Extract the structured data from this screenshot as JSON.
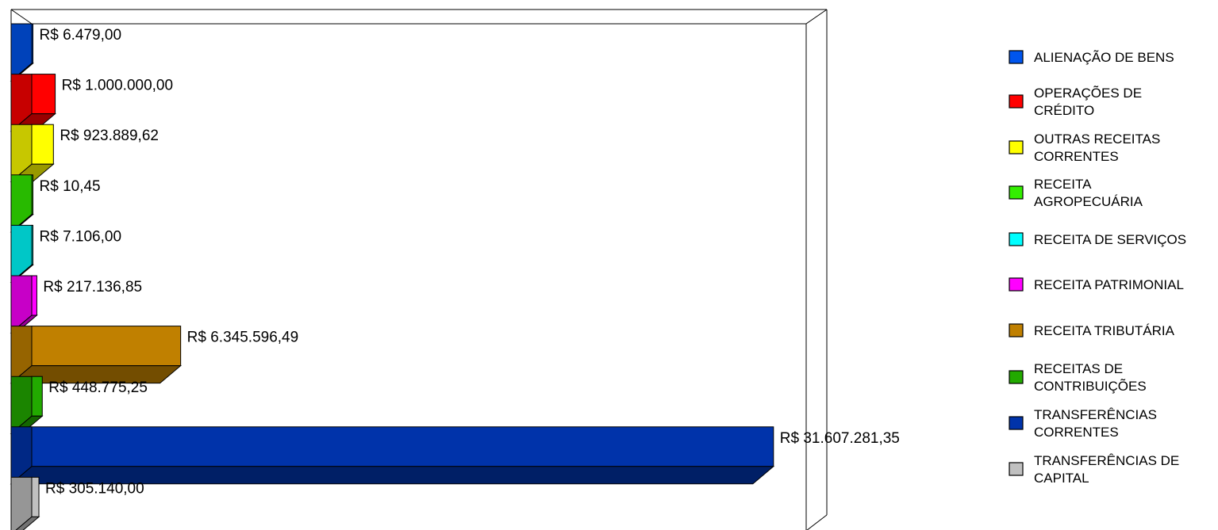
{
  "chart_data": {
    "type": "bar",
    "orientation": "horizontal",
    "three_d": true,
    "grid": false,
    "legend_position": "right",
    "categories": [
      "ALIENAÇÃO DE BENS",
      "OPERAÇÕES DE CRÉDITO",
      "OUTRAS RECEITAS CORRENTES",
      "RECEITA AGROPECUÁRIA",
      "RECEITA DE SERVIÇOS",
      "RECEITA PATRIMONIAL",
      "RECEITA TRIBUTÁRIA",
      "RECEITAS DE CONTRIBUIÇÕES",
      "TRANSFERÊNCIAS CORRENTES",
      "TRANSFERÊNCIAS DE CAPITAL"
    ],
    "legend_lines": [
      [
        "ALIENAÇÃO DE BENS"
      ],
      [
        "OPERAÇÕES DE",
        "CRÉDITO"
      ],
      [
        "OUTRAS RECEITAS",
        "CORRENTES"
      ],
      [
        "RECEITA",
        "AGROPECUÁRIA"
      ],
      [
        "RECEITA DE SERVIÇOS"
      ],
      [
        "RECEITA PATRIMONIAL"
      ],
      [
        "RECEITA TRIBUTÁRIA"
      ],
      [
        "RECEITAS DE",
        "CONTRIBUIÇÕES"
      ],
      [
        "TRANSFERÊNCIAS",
        "CORRENTES"
      ],
      [
        "TRANSFERÊNCIAS DE",
        "CAPITAL"
      ]
    ],
    "values": [
      6479.0,
      1000000.0,
      923889.62,
      10.45,
      7106.0,
      217136.85,
      6345596.49,
      448775.25,
      31607281.35,
      305140.0
    ],
    "data_labels": [
      "R$ 6.479,00",
      "R$ 1.000.000,00",
      "R$ 923.889,62",
      "R$ 10,45",
      "R$ 7.106,00",
      "R$ 217.136,85",
      "R$ 6.345.596,49",
      "R$ 448.775,25",
      "R$ 31.607.281,35",
      "R$ 305.140,00"
    ],
    "colors": [
      "#0055ee",
      "#ff0000",
      "#ffff00",
      "#33ee00",
      "#00ffff",
      "#ff00ff",
      "#c08000",
      "#22aa00",
      "#0033aa",
      "#c0c0c0"
    ],
    "xlim": [
      0,
      33000000
    ]
  }
}
